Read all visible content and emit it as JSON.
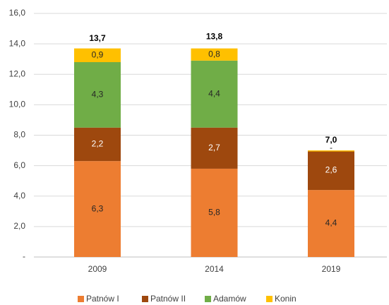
{
  "chart_data": {
    "type": "stacked_bar",
    "categories": [
      "2009",
      "2014",
      "2019"
    ],
    "series": [
      {
        "name": "Patnów I",
        "color": "#ED7D31",
        "values": [
          6.3,
          5.8,
          4.4
        ],
        "value_labels": [
          "6,3",
          "5,8",
          "4,4"
        ]
      },
      {
        "name": "Patnów II",
        "color": "#9E480E",
        "values": [
          2.2,
          2.7,
          2.6
        ],
        "value_labels": [
          "2,2",
          "2,7",
          "2,6"
        ]
      },
      {
        "name": "Adamów",
        "color": "#70AD47",
        "values": [
          4.3,
          4.4,
          null
        ],
        "value_labels": [
          "4,3",
          "4,4",
          null
        ]
      },
      {
        "name": "Konin",
        "color": "#FFC000",
        "values": [
          0.9,
          0.8,
          0
        ],
        "value_labels": [
          "0,9",
          "0,8",
          "-"
        ]
      }
    ],
    "totals": [
      13.7,
      13.8,
      7.0
    ],
    "total_labels": [
      "13,7",
      "13,8",
      "7,0"
    ],
    "ylim": [
      0,
      16
    ],
    "yticks": [
      {
        "value": 0,
        "label": "-"
      },
      {
        "value": 2,
        "label": "2,0"
      },
      {
        "value": 4,
        "label": "4,0"
      },
      {
        "value": 6,
        "label": "6,0"
      },
      {
        "value": 8,
        "label": "8,0"
      },
      {
        "value": 10,
        "label": "10,0"
      },
      {
        "value": 12,
        "label": "12,0"
      },
      {
        "value": 14,
        "label": "14,0"
      },
      {
        "value": 16,
        "label": "16,0"
      }
    ],
    "grid": true,
    "legend": "bottom"
  }
}
